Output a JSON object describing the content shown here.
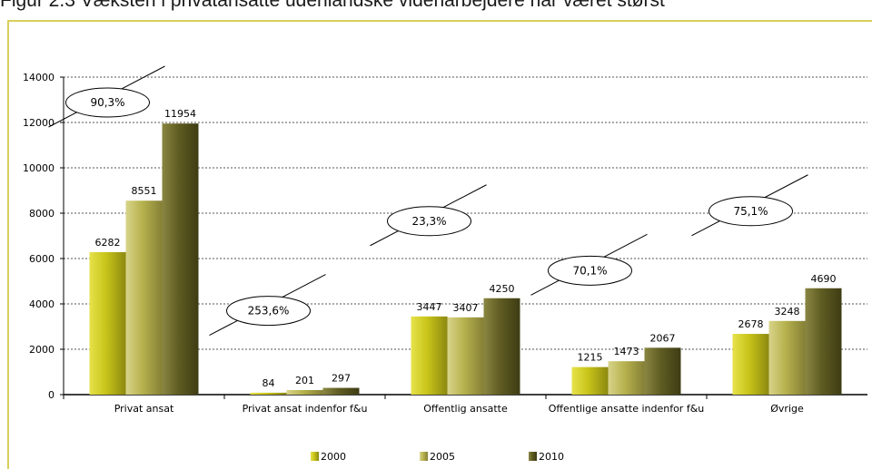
{
  "caption": "Figur 2.3 Væksten i privatansatte udenlandske videnarbejdere har været størst",
  "chart_data": {
    "type": "bar",
    "categories": [
      "Privat ansat",
      "Privat ansat indenfor f&u",
      "Offentlig ansatte",
      "Offentlige ansatte indenfor f&u",
      "Øvrige"
    ],
    "series": [
      {
        "name": "2000",
        "values": [
          6282,
          84,
          3447,
          1215,
          2678
        ],
        "color": "#c8c41a"
      },
      {
        "name": "2005",
        "values": [
          8551,
          201,
          3407,
          1473,
          3248
        ],
        "color": "#b7b24e"
      },
      {
        "name": "2010",
        "values": [
          11954,
          297,
          4250,
          2067,
          4690
        ],
        "color": "#5f5c22"
      }
    ],
    "growth_labels": [
      "90,3%",
      "253,6%",
      "23,3%",
      "70,1%",
      "75,1%"
    ],
    "ylim": [
      0,
      14000
    ],
    "yticks": [
      0,
      2000,
      4000,
      6000,
      8000,
      10000,
      12000,
      14000
    ],
    "grid": true,
    "legend": "bottom"
  }
}
